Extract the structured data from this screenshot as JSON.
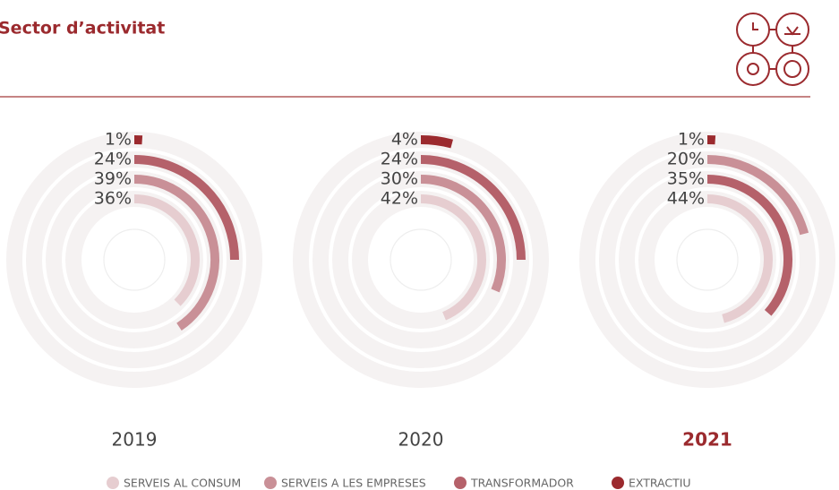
{
  "title": "Sector d’activitat",
  "legend": [
    {
      "name": "SERVEIS AL CONSUM",
      "color": "#e6cdd0"
    },
    {
      "name": "SERVEIS A LES EMPRESES",
      "color": "#c99097"
    },
    {
      "name": "TRANSFORMADOR",
      "color": "#b5616a"
    },
    {
      "name": "EXTRACTIU",
      "color": "#9b2a2e"
    }
  ],
  "chart_data": [
    {
      "type": "radial",
      "title": "2019",
      "xlim": [
        0,
        96
      ],
      "values": [
        36,
        39,
        24,
        1
      ],
      "value_labels": [
        "36%",
        "39%",
        "24%",
        "1%"
      ],
      "colors": [
        "#e6cdd0",
        "#c99097",
        "#b5616a",
        "#9b2a2e"
      ]
    },
    {
      "type": "radial",
      "title": "2020",
      "xlim": [
        0,
        96
      ],
      "values": [
        42,
        30,
        24,
        4
      ],
      "value_labels": [
        "42%",
        "30%",
        "24%",
        "4%"
      ],
      "colors": [
        "#e6cdd0",
        "#c99097",
        "#b5616a",
        "#9b2a2e"
      ]
    },
    {
      "type": "radial",
      "title": "2021",
      "xlim": [
        0,
        96
      ],
      "bold": true,
      "values": [
        44,
        35,
        20,
        1
      ],
      "value_labels": [
        "44%",
        "35%",
        "20%",
        "1%"
      ],
      "colors": [
        "#e6cdd0",
        "#b5616a",
        "#c99097",
        "#9b2a2e"
      ]
    }
  ]
}
